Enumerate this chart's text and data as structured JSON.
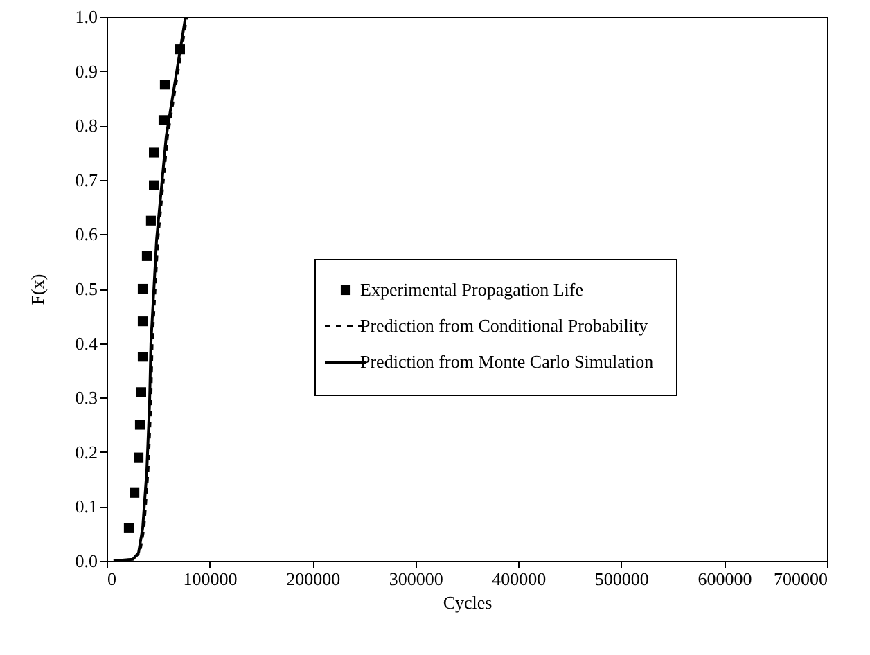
{
  "chart_data": {
    "type": "scatter",
    "xlabel": "Cycles",
    "ylabel": "F(x)",
    "xlim": [
      0,
      700000
    ],
    "ylim": [
      0,
      1
    ],
    "xticks": [
      0,
      100000,
      200000,
      300000,
      400000,
      500000,
      600000,
      700000
    ],
    "yticks": [
      {
        "value": 0,
        "label": "0.0"
      },
      {
        "value": 0.1,
        "label": "0.1"
      },
      {
        "value": 0.2,
        "label": "0.2"
      },
      {
        "value": 0.3,
        "label": "0.3"
      },
      {
        "value": 0.4,
        "label": "0.4"
      },
      {
        "value": 0.5,
        "label": "0.5"
      },
      {
        "value": 0.6,
        "label": "0.6"
      },
      {
        "value": 0.7,
        "label": "0.7"
      },
      {
        "value": 0.8,
        "label": "0.8"
      },
      {
        "value": 0.9,
        "label": "0.9"
      },
      {
        "value": 1,
        "label": "1.0"
      }
    ],
    "grid": false,
    "legend": "right",
    "series": [
      {
        "name": "Experimental Propagation Life",
        "type": "scatter",
        "marker": "square",
        "color": "#000000",
        "x": [
          21500,
          27000,
          31000,
          32300,
          33600,
          35000,
          35000,
          35000,
          39000,
          43000,
          45800,
          45800,
          55200,
          56500,
          71300
        ],
        "values": [
          0.06,
          0.125,
          0.19,
          0.25,
          0.31,
          0.375,
          0.44,
          0.5,
          0.56,
          0.625,
          0.69,
          0.75,
          0.81,
          0.875,
          0.94
        ]
      },
      {
        "name": "Prediction from Conditional Probability",
        "type": "line",
        "line_style": "dashed",
        "color": "#000000",
        "x": [
          6700,
          25600,
          32500,
          36500,
          40500,
          43200,
          44500,
          50000,
          59400,
          78200
        ],
        "values": [
          0,
          0.003,
          0.015,
          0.06,
          0.165,
          0.29,
          0.4,
          0.59,
          0.78,
          1
        ]
      },
      {
        "name": "Prediction from Monte Carlo Simulation",
        "type": "line",
        "line_style": "solid",
        "color": "#000000",
        "x": [
          6700,
          25600,
          31000,
          35000,
          39000,
          41700,
          43000,
          48500,
          57900,
          76700
        ],
        "values": [
          0,
          0.003,
          0.015,
          0.06,
          0.165,
          0.29,
          0.4,
          0.59,
          0.78,
          1
        ]
      }
    ]
  }
}
